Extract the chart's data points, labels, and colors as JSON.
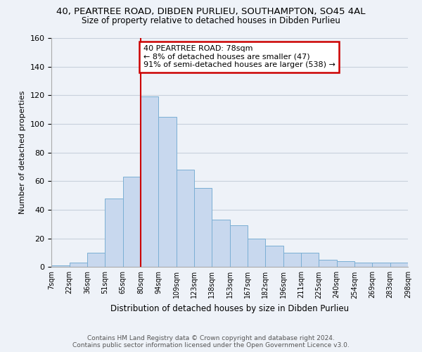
{
  "title_line1": "40, PEARTREE ROAD, DIBDEN PURLIEU, SOUTHAMPTON, SO45 4AL",
  "title_line2": "Size of property relative to detached houses in Dibden Purlieu",
  "xlabel": "Distribution of detached houses by size in Dibden Purlieu",
  "ylabel": "Number of detached properties",
  "bar_labels": [
    "7sqm",
    "22sqm",
    "36sqm",
    "51sqm",
    "65sqm",
    "80sqm",
    "94sqm",
    "109sqm",
    "123sqm",
    "138sqm",
    "153sqm",
    "167sqm",
    "182sqm",
    "196sqm",
    "211sqm",
    "225sqm",
    "240sqm",
    "254sqm",
    "269sqm",
    "283sqm",
    "298sqm"
  ],
  "bar_values": [
    1,
    3,
    10,
    48,
    63,
    119,
    105,
    68,
    55,
    33,
    29,
    20,
    15,
    10,
    10,
    5,
    4,
    3,
    3,
    3
  ],
  "bar_color": "#c8d8ee",
  "bar_edge_color": "#7bafd4",
  "red_line_index": 5,
  "property_line_label": "40 PEARTREE ROAD: 78sqm",
  "annotation_line2": "← 8% of detached houses are smaller (47)",
  "annotation_line3": "91% of semi-detached houses are larger (538) →",
  "annotation_box_color": "#ffffff",
  "annotation_box_edge": "#cc0000",
  "red_line_color": "#cc0000",
  "ylim": [
    0,
    160
  ],
  "yticks": [
    0,
    20,
    40,
    60,
    80,
    100,
    120,
    140,
    160
  ],
  "grid_color": "#c8d0dc",
  "background_color": "#eef2f8",
  "footer_line1": "Contains HM Land Registry data © Crown copyright and database right 2024.",
  "footer_line2": "Contains public sector information licensed under the Open Government Licence v3.0."
}
